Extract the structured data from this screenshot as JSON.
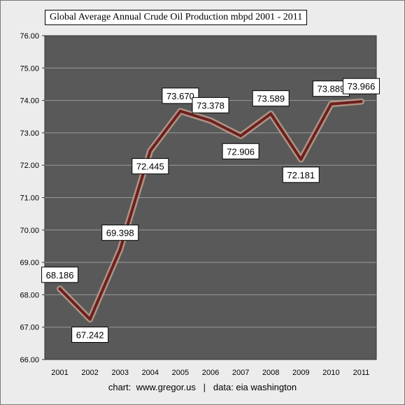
{
  "chart_data": {
    "type": "line",
    "title": "Global Average Annual Crude Oil Production mbpd 2001 - 2011",
    "categories": [
      "2001",
      "2002",
      "2003",
      "2004",
      "2005",
      "2006",
      "2007",
      "2008",
      "2009",
      "2010",
      "2011"
    ],
    "series": [
      {
        "values": [
          68.186,
          67.242,
          69.398,
          72.445,
          73.67,
          73.378,
          72.906,
          73.589,
          72.181,
          73.889,
          73.966
        ],
        "labels": [
          "68.186",
          "67.242",
          "69.398",
          "72.445",
          "73.670",
          "73.378",
          "72.906",
          "73.589",
          "72.181",
          "73.889",
          "73.966"
        ]
      }
    ],
    "y_ticks": [
      "66.00",
      "67.00",
      "68.00",
      "69.00",
      "70.00",
      "71.00",
      "72.00",
      "73.00",
      "74.00",
      "75.00",
      "76.00"
    ],
    "ylim": [
      66,
      76
    ],
    "grid": true,
    "legend": "none",
    "colors": {
      "plot_background": "#595959",
      "gridline": "#9a9a9a",
      "line": "#6e1f1f",
      "line_glow": "#c9a792"
    }
  },
  "caption": "chart:  www.gregor.us   |   data: eia washington"
}
